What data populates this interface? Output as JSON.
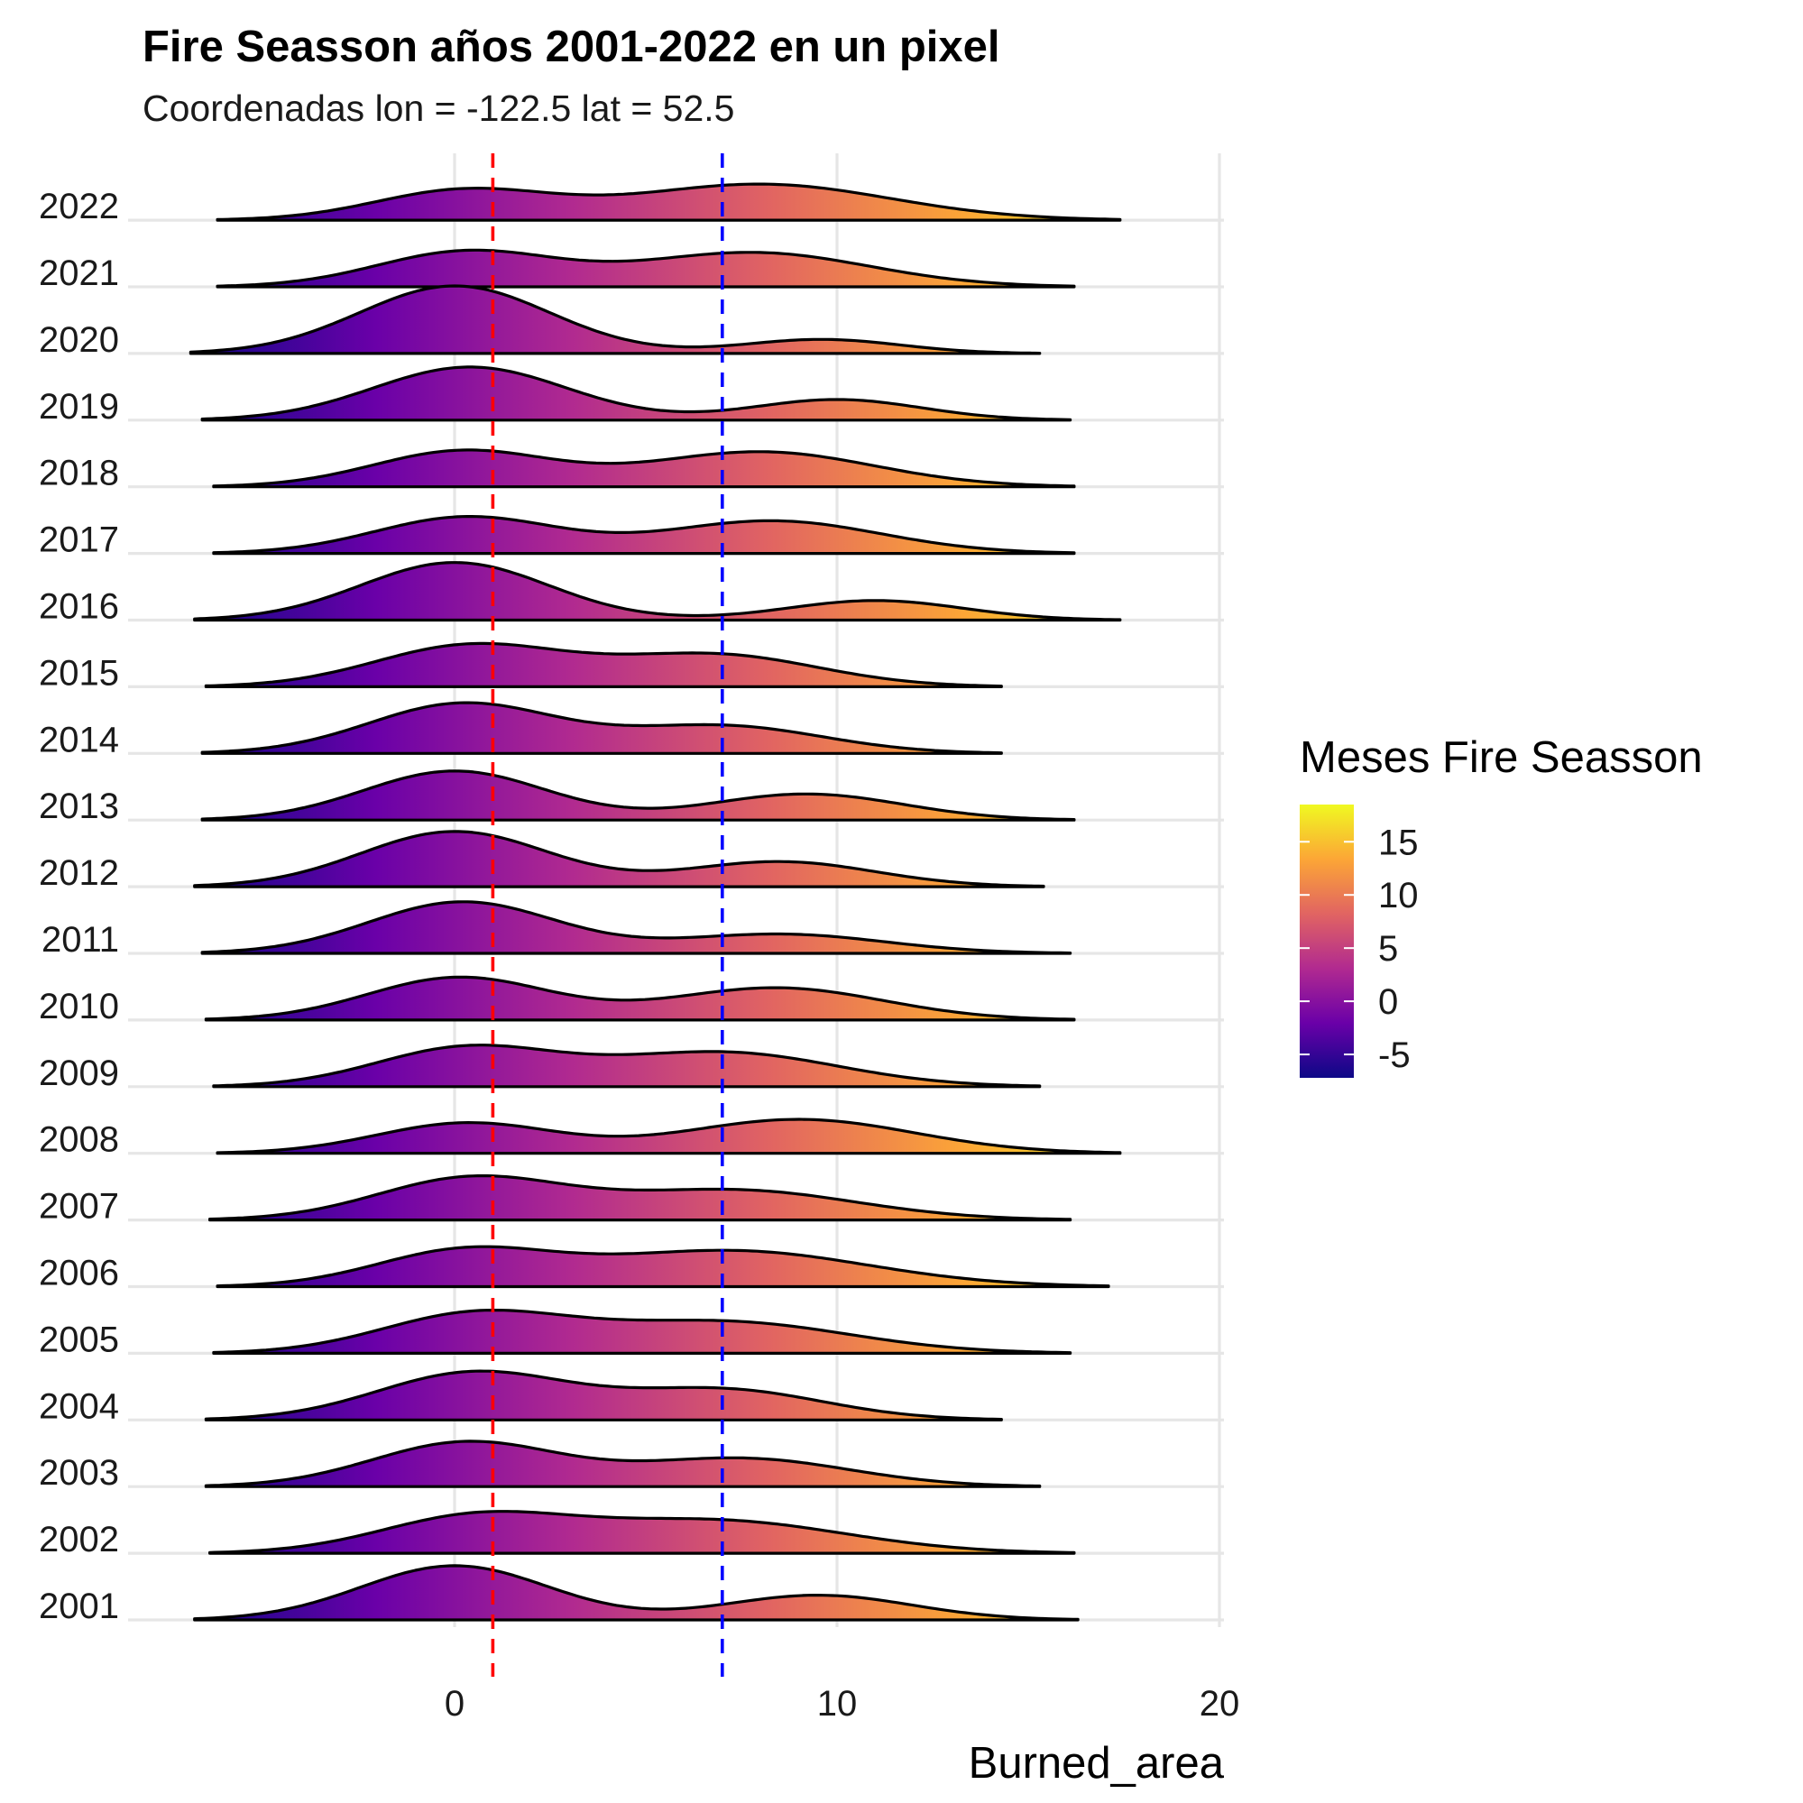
{
  "chart_data": {
    "type": "ridgeline",
    "title": "Fire Seasson años 2001-2022 en un pixel",
    "subtitle": "Coordenadas lon = -122.5 lat = 52.5",
    "xlabel": "Burned_area",
    "ylabel": "",
    "xlim": [
      -8.2,
      20.2
    ],
    "x_ticks": [
      0,
      10,
      20
    ],
    "grid": true,
    "fill_gradient": "x (plasma palette)",
    "reference_lines": [
      {
        "x": 1.0,
        "color": "#ff0000",
        "style": "dashed"
      },
      {
        "x": 7.0,
        "color": "#0000ff",
        "style": "dashed"
      }
    ],
    "legend": {
      "title": "Meses Fire Seasson",
      "placement": "right",
      "ticks": [
        15,
        10,
        5,
        0,
        -5
      ],
      "range": [
        -7.2,
        18.5
      ],
      "colors": [
        "#0d0887",
        "#6a00a8",
        "#b12a90",
        "#e16462",
        "#fca636",
        "#f0f921"
      ]
    },
    "series": [
      {
        "name": "2001",
        "range": [
          -6.8,
          16.3
        ],
        "peaks": [
          [
            0.0,
            1.58
          ],
          [
            9.5,
            0.72
          ]
        ]
      },
      {
        "name": "2002",
        "range": [
          -6.4,
          16.2
        ],
        "peaks": [
          [
            0.5,
            1.02
          ],
          [
            6.8,
            0.95
          ]
        ]
      },
      {
        "name": "2003",
        "range": [
          -6.5,
          15.3
        ],
        "peaks": [
          [
            0.3,
            1.29
          ],
          [
            7.5,
            0.82
          ]
        ]
      },
      {
        "name": "2004",
        "range": [
          -6.5,
          14.3
        ],
        "peaks": [
          [
            0.5,
            1.38
          ],
          [
            7.0,
            0.88
          ]
        ]
      },
      {
        "name": "2005",
        "range": [
          -6.3,
          16.1
        ],
        "peaks": [
          [
            0.5,
            1.11
          ],
          [
            7.0,
            0.92
          ]
        ]
      },
      {
        "name": "2006",
        "range": [
          -6.2,
          17.1
        ],
        "peaks": [
          [
            0.2,
            0.99
          ],
          [
            7.2,
            1.05
          ]
        ]
      },
      {
        "name": "2007",
        "range": [
          -6.4,
          16.1
        ],
        "peaks": [
          [
            0.4,
            1.2
          ],
          [
            7.3,
            0.87
          ]
        ]
      },
      {
        "name": "2008",
        "range": [
          -6.2,
          17.4
        ],
        "peaks": [
          [
            0.3,
            0.88
          ],
          [
            9.0,
            0.99
          ]
        ]
      },
      {
        "name": "2009",
        "range": [
          -6.3,
          15.3
        ],
        "peaks": [
          [
            0.3,
            1.12
          ],
          [
            7.0,
            1.0
          ]
        ]
      },
      {
        "name": "2010",
        "range": [
          -6.5,
          16.2
        ],
        "peaks": [
          [
            0.1,
            1.24
          ],
          [
            8.4,
            0.94
          ]
        ]
      },
      {
        "name": "2011",
        "range": [
          -6.6,
          16.1
        ],
        "peaks": [
          [
            0.2,
            1.5
          ],
          [
            8.5,
            0.56
          ]
        ]
      },
      {
        "name": "2012",
        "range": [
          -6.8,
          15.4
        ],
        "peaks": [
          [
            0.0,
            1.61
          ],
          [
            8.5,
            0.73
          ]
        ]
      },
      {
        "name": "2013",
        "range": [
          -6.6,
          16.2
        ],
        "peaks": [
          [
            0.0,
            1.43
          ],
          [
            9.2,
            0.76
          ]
        ]
      },
      {
        "name": "2014",
        "range": [
          -6.6,
          14.3
        ],
        "peaks": [
          [
            0.2,
            1.45
          ],
          [
            7.0,
            0.8
          ]
        ]
      },
      {
        "name": "2015",
        "range": [
          -6.5,
          14.3
        ],
        "peaks": [
          [
            0.4,
            1.2
          ],
          [
            6.8,
            0.93
          ]
        ]
      },
      {
        "name": "2016",
        "range": [
          -6.8,
          17.4
        ],
        "peaks": [
          [
            0.0,
            1.68
          ],
          [
            11.0,
            0.57
          ]
        ]
      },
      {
        "name": "2017",
        "range": [
          -6.3,
          16.2
        ],
        "peaks": [
          [
            0.3,
            1.06
          ],
          [
            8.3,
            0.95
          ]
        ]
      },
      {
        "name": "2018",
        "range": [
          -6.3,
          16.2
        ],
        "peaks": [
          [
            0.2,
            1.04
          ],
          [
            8.0,
            1.02
          ]
        ]
      },
      {
        "name": "2019",
        "range": [
          -6.6,
          16.1
        ],
        "peaks": [
          [
            0.4,
            1.55
          ],
          [
            10.0,
            0.6
          ]
        ]
      },
      {
        "name": "2020",
        "range": [
          -6.9,
          15.3
        ],
        "peaks": [
          [
            0.0,
            1.97
          ],
          [
            9.6,
            0.41
          ]
        ]
      },
      {
        "name": "2021",
        "range": [
          -6.2,
          16.2
        ],
        "peaks": [
          [
            0.3,
            1.02
          ],
          [
            7.8,
            1.0
          ]
        ]
      },
      {
        "name": "2022",
        "range": [
          -6.2,
          17.4
        ],
        "peaks": [
          [
            0.2,
            0.85
          ],
          [
            8.0,
            1.05
          ]
        ]
      }
    ]
  }
}
